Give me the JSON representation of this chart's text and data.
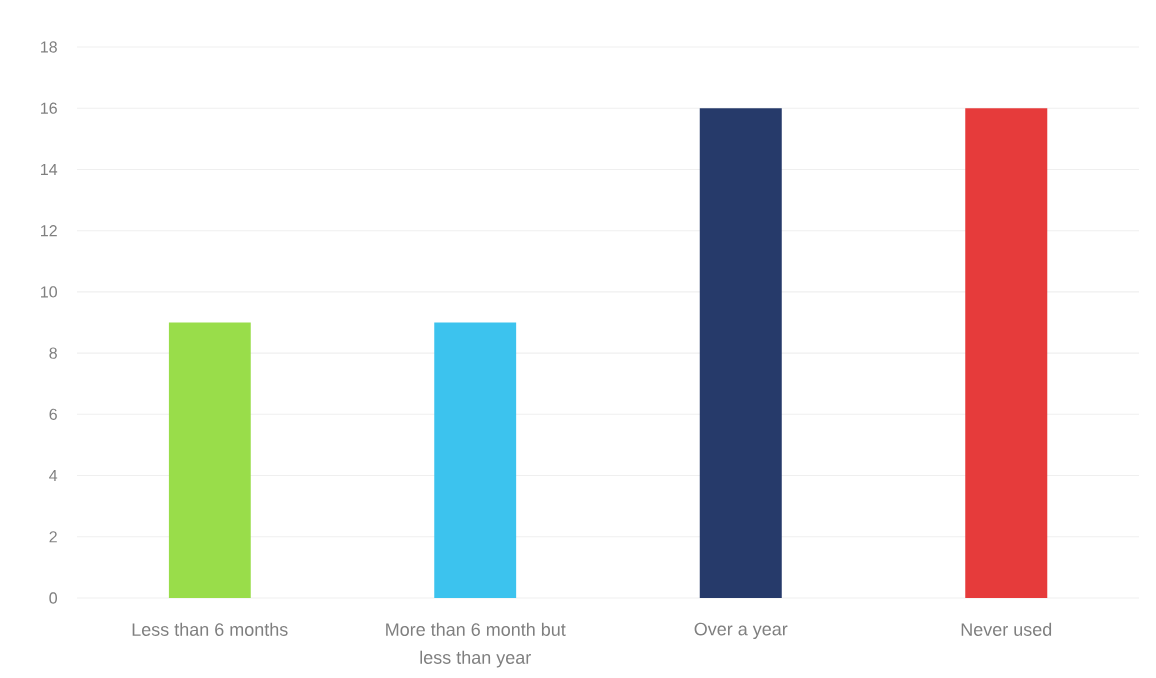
{
  "chart_data": {
    "type": "bar",
    "categories": [
      "Less than 6 months",
      "More than 6 month but less than year",
      "Over a year",
      "Never used"
    ],
    "values": [
      9,
      9,
      16,
      16
    ],
    "colors": [
      "#99dd4a",
      "#3cc3ee",
      "#263a6a",
      "#e63b3b"
    ],
    "ylim": [
      0,
      18
    ],
    "yticks": [
      0,
      2,
      4,
      6,
      8,
      10,
      12,
      14,
      16,
      18
    ],
    "grid": "y"
  }
}
